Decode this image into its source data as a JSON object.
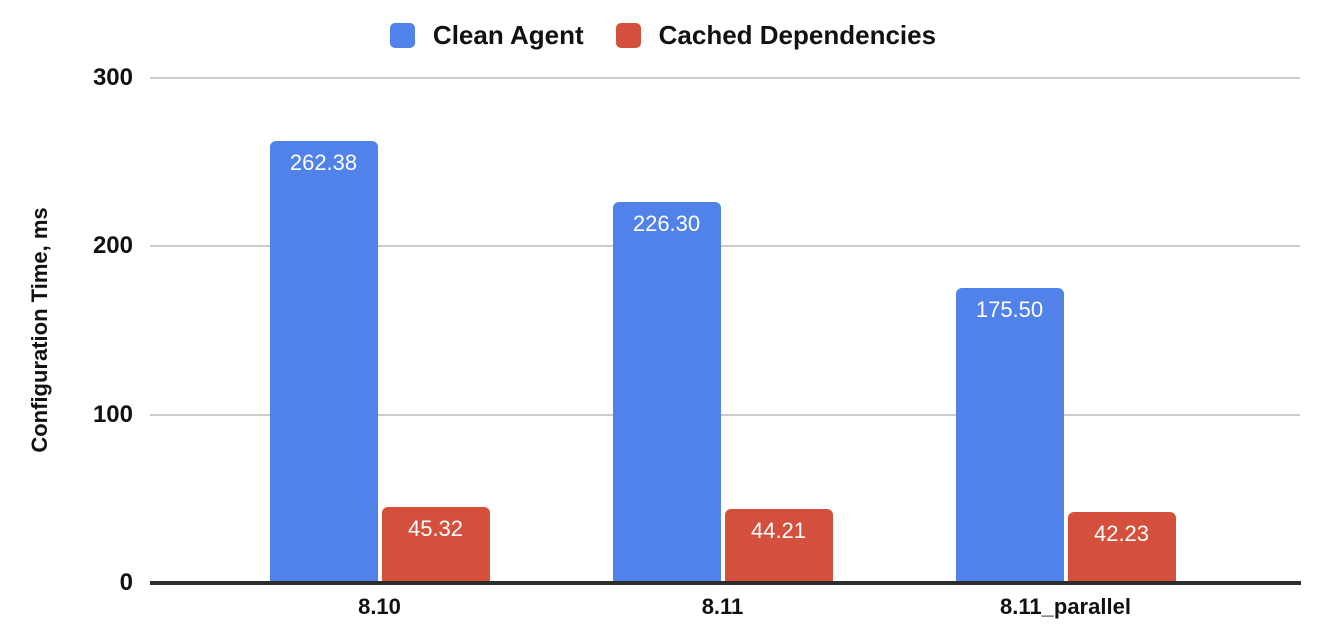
{
  "chart_data": {
    "type": "bar",
    "title": "",
    "xlabel": "",
    "ylabel": "Configuration Time, ms",
    "categories": [
      "8.10",
      "8.11",
      "8.11_parallel"
    ],
    "series": [
      {
        "name": "Clean Agent",
        "color": "#5082e9",
        "values": [
          262.38,
          226.3,
          175.5
        ],
        "value_labels": [
          "262.38",
          "226.30",
          "175.50"
        ]
      },
      {
        "name": "Cached Dependencies",
        "color": "#d54f3d",
        "values": [
          45.32,
          44.21,
          42.23
        ],
        "value_labels": [
          "45.32",
          "44.21",
          "42.23"
        ]
      }
    ],
    "ylim": [
      0,
      300
    ],
    "yticks": [
      0,
      100,
      200,
      300
    ],
    "grid": true,
    "legend_position": "top",
    "value_label_position": "inside-top",
    "colors": {
      "grid": "#cccccc",
      "axis": "#2d2d2d",
      "text": "#111111",
      "value_label": "#ffffff",
      "background": "#ffffff"
    }
  }
}
